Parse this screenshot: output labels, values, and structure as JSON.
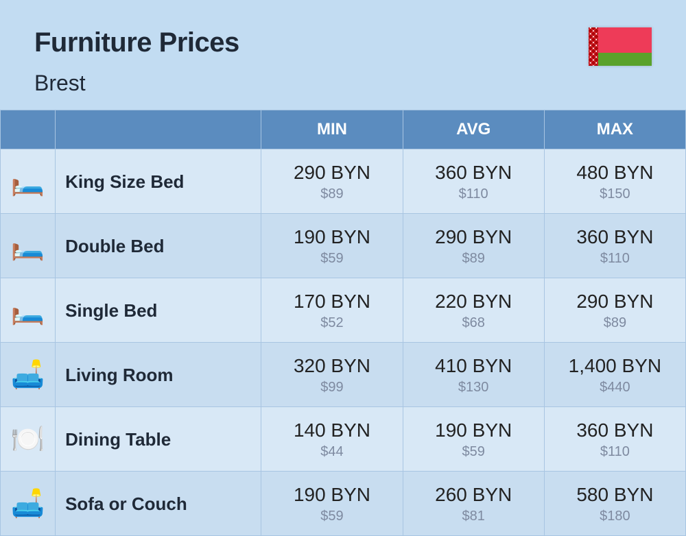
{
  "title": "Furniture Prices",
  "location": "Brest",
  "columns": {
    "min": "MIN",
    "avg": "AVG",
    "max": "MAX"
  },
  "rows": [
    {
      "icon": "🛏️",
      "label": "King Size Bed",
      "min": {
        "p": "290 BYN",
        "s": "$89"
      },
      "avg": {
        "p": "360 BYN",
        "s": "$110"
      },
      "max": {
        "p": "480 BYN",
        "s": "$150"
      }
    },
    {
      "icon": "🛏️",
      "label": "Double Bed",
      "min": {
        "p": "190 BYN",
        "s": "$59"
      },
      "avg": {
        "p": "290 BYN",
        "s": "$89"
      },
      "max": {
        "p": "360 BYN",
        "s": "$110"
      }
    },
    {
      "icon": "🛏️",
      "label": "Single Bed",
      "min": {
        "p": "170 BYN",
        "s": "$52"
      },
      "avg": {
        "p": "220 BYN",
        "s": "$68"
      },
      "max": {
        "p": "290 BYN",
        "s": "$89"
      }
    },
    {
      "icon": "🛋️",
      "label": "Living Room",
      "min": {
        "p": "320 BYN",
        "s": "$99"
      },
      "avg": {
        "p": "410 BYN",
        "s": "$130"
      },
      "max": {
        "p": "1,400 BYN",
        "s": "$440"
      }
    },
    {
      "icon": "🍽️",
      "label": "Dining Table",
      "min": {
        "p": "140 BYN",
        "s": "$44"
      },
      "avg": {
        "p": "190 BYN",
        "s": "$59"
      },
      "max": {
        "p": "360 BYN",
        "s": "$110"
      }
    },
    {
      "icon": "🛋️",
      "label": "Sofa or Couch",
      "min": {
        "p": "190 BYN",
        "s": "$59"
      },
      "avg": {
        "p": "260 BYN",
        "s": "$81"
      },
      "max": {
        "p": "580 BYN",
        "s": "$180"
      }
    }
  ],
  "flag": {
    "ornament": "#d22730",
    "red": "#ee3b58",
    "green": "#5aa22b"
  },
  "style": {
    "page_bg": "#c2dcf2",
    "header_bg": "#5b8cbf",
    "row_odd": "#d8e8f6",
    "row_even": "#c8ddf0",
    "border": "#a8c5e2",
    "sub_text": "#7e8aa0",
    "title_fontsize": 40,
    "location_fontsize": 32,
    "header_fontsize": 24,
    "label_fontsize": 26,
    "price_fontsize": 28,
    "sub_fontsize": 20
  }
}
